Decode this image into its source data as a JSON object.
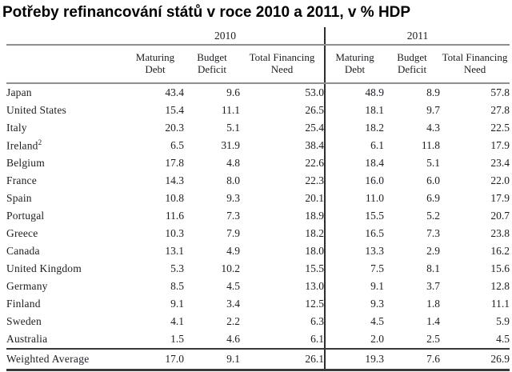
{
  "title": "Potřeby refinancování států v roce 2010 a 2011, v % HDP",
  "chart_data": {
    "type": "table",
    "title": "Potřeby refinancování států v roce 2010 a 2011, v % HDP",
    "units": "% HDP",
    "year_groups": [
      "2010",
      "2011"
    ],
    "sub_columns": [
      "Maturing Debt",
      "Budget Deficit",
      "Total Financing Need"
    ],
    "rows": [
      {
        "label": "Japan",
        "values": [
          "43.4",
          "9.6",
          "53.0",
          "48.9",
          "8.9",
          "57.8"
        ]
      },
      {
        "label": "United States",
        "values": [
          "15.4",
          "11.1",
          "26.5",
          "18.1",
          "9.7",
          "27.8"
        ]
      },
      {
        "label": "Italy",
        "values": [
          "20.3",
          "5.1",
          "25.4",
          "18.2",
          "4.3",
          "22.5"
        ]
      },
      {
        "label": "Ireland",
        "sup": "2",
        "values": [
          "6.5",
          "31.9",
          "38.4",
          "6.1",
          "11.8",
          "17.9"
        ]
      },
      {
        "label": "Belgium",
        "values": [
          "17.8",
          "4.8",
          "22.6",
          "18.4",
          "5.1",
          "23.4"
        ]
      },
      {
        "label": "France",
        "values": [
          "14.3",
          "8.0",
          "22.3",
          "16.0",
          "6.0",
          "22.0"
        ]
      },
      {
        "label": "Spain",
        "values": [
          "10.8",
          "9.3",
          "20.1",
          "11.0",
          "6.9",
          "17.9"
        ]
      },
      {
        "label": "Portugal",
        "values": [
          "11.6",
          "7.3",
          "18.9",
          "15.5",
          "5.2",
          "20.7"
        ]
      },
      {
        "label": "Greece",
        "values": [
          "10.3",
          "7.9",
          "18.2",
          "16.5",
          "7.3",
          "23.8"
        ]
      },
      {
        "label": "Canada",
        "values": [
          "13.1",
          "4.9",
          "18.0",
          "13.3",
          "2.9",
          "16.2"
        ]
      },
      {
        "label": "United Kingdom",
        "values": [
          "5.3",
          "10.2",
          "15.5",
          "7.5",
          "8.1",
          "15.6"
        ]
      },
      {
        "label": "Germany",
        "values": [
          "8.5",
          "4.5",
          "13.0",
          "9.1",
          "3.7",
          "12.8"
        ]
      },
      {
        "label": "Finland",
        "values": [
          "9.1",
          "3.4",
          "12.5",
          "9.3",
          "1.8",
          "11.1"
        ]
      },
      {
        "label": "Sweden",
        "values": [
          "4.1",
          "2.2",
          "6.3",
          "4.5",
          "1.4",
          "5.9"
        ]
      },
      {
        "label": "Australia",
        "values": [
          "1.5",
          "4.6",
          "6.1",
          "2.0",
          "2.5",
          "4.5"
        ]
      }
    ],
    "footer": {
      "label": "Weighted Average",
      "values": [
        "17.0",
        "9.1",
        "26.1",
        "19.3",
        "7.6",
        "26.9"
      ]
    }
  }
}
